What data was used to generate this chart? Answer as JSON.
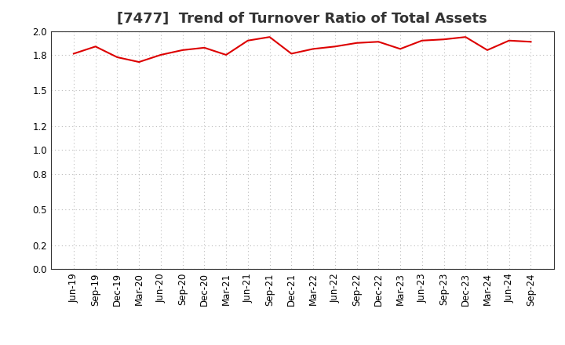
{
  "title": "[7477]  Trend of Turnover Ratio of Total Assets",
  "x_labels": [
    "Jun-19",
    "Sep-19",
    "Dec-19",
    "Mar-20",
    "Jun-20",
    "Sep-20",
    "Dec-20",
    "Mar-21",
    "Jun-21",
    "Sep-21",
    "Dec-21",
    "Mar-22",
    "Jun-22",
    "Sep-22",
    "Dec-22",
    "Mar-23",
    "Jun-23",
    "Sep-23",
    "Dec-23",
    "Mar-24",
    "Jun-24",
    "Sep-24"
  ],
  "values": [
    1.81,
    1.87,
    1.78,
    1.74,
    1.8,
    1.84,
    1.86,
    1.8,
    1.92,
    1.95,
    1.81,
    1.85,
    1.87,
    1.9,
    1.91,
    1.85,
    1.92,
    1.93,
    1.95,
    1.84,
    1.92,
    1.91
  ],
  "line_color": "#dd0000",
  "background_color": "#ffffff",
  "plot_bg_color": "#ffffff",
  "grid_color": "#bbbbbb",
  "ylim": [
    0.0,
    2.0
  ],
  "yticks": [
    0.0,
    0.2,
    0.5,
    0.8,
    1.0,
    1.2,
    1.5,
    1.8,
    2.0
  ],
  "title_fontsize": 13,
  "tick_fontsize": 8.5
}
